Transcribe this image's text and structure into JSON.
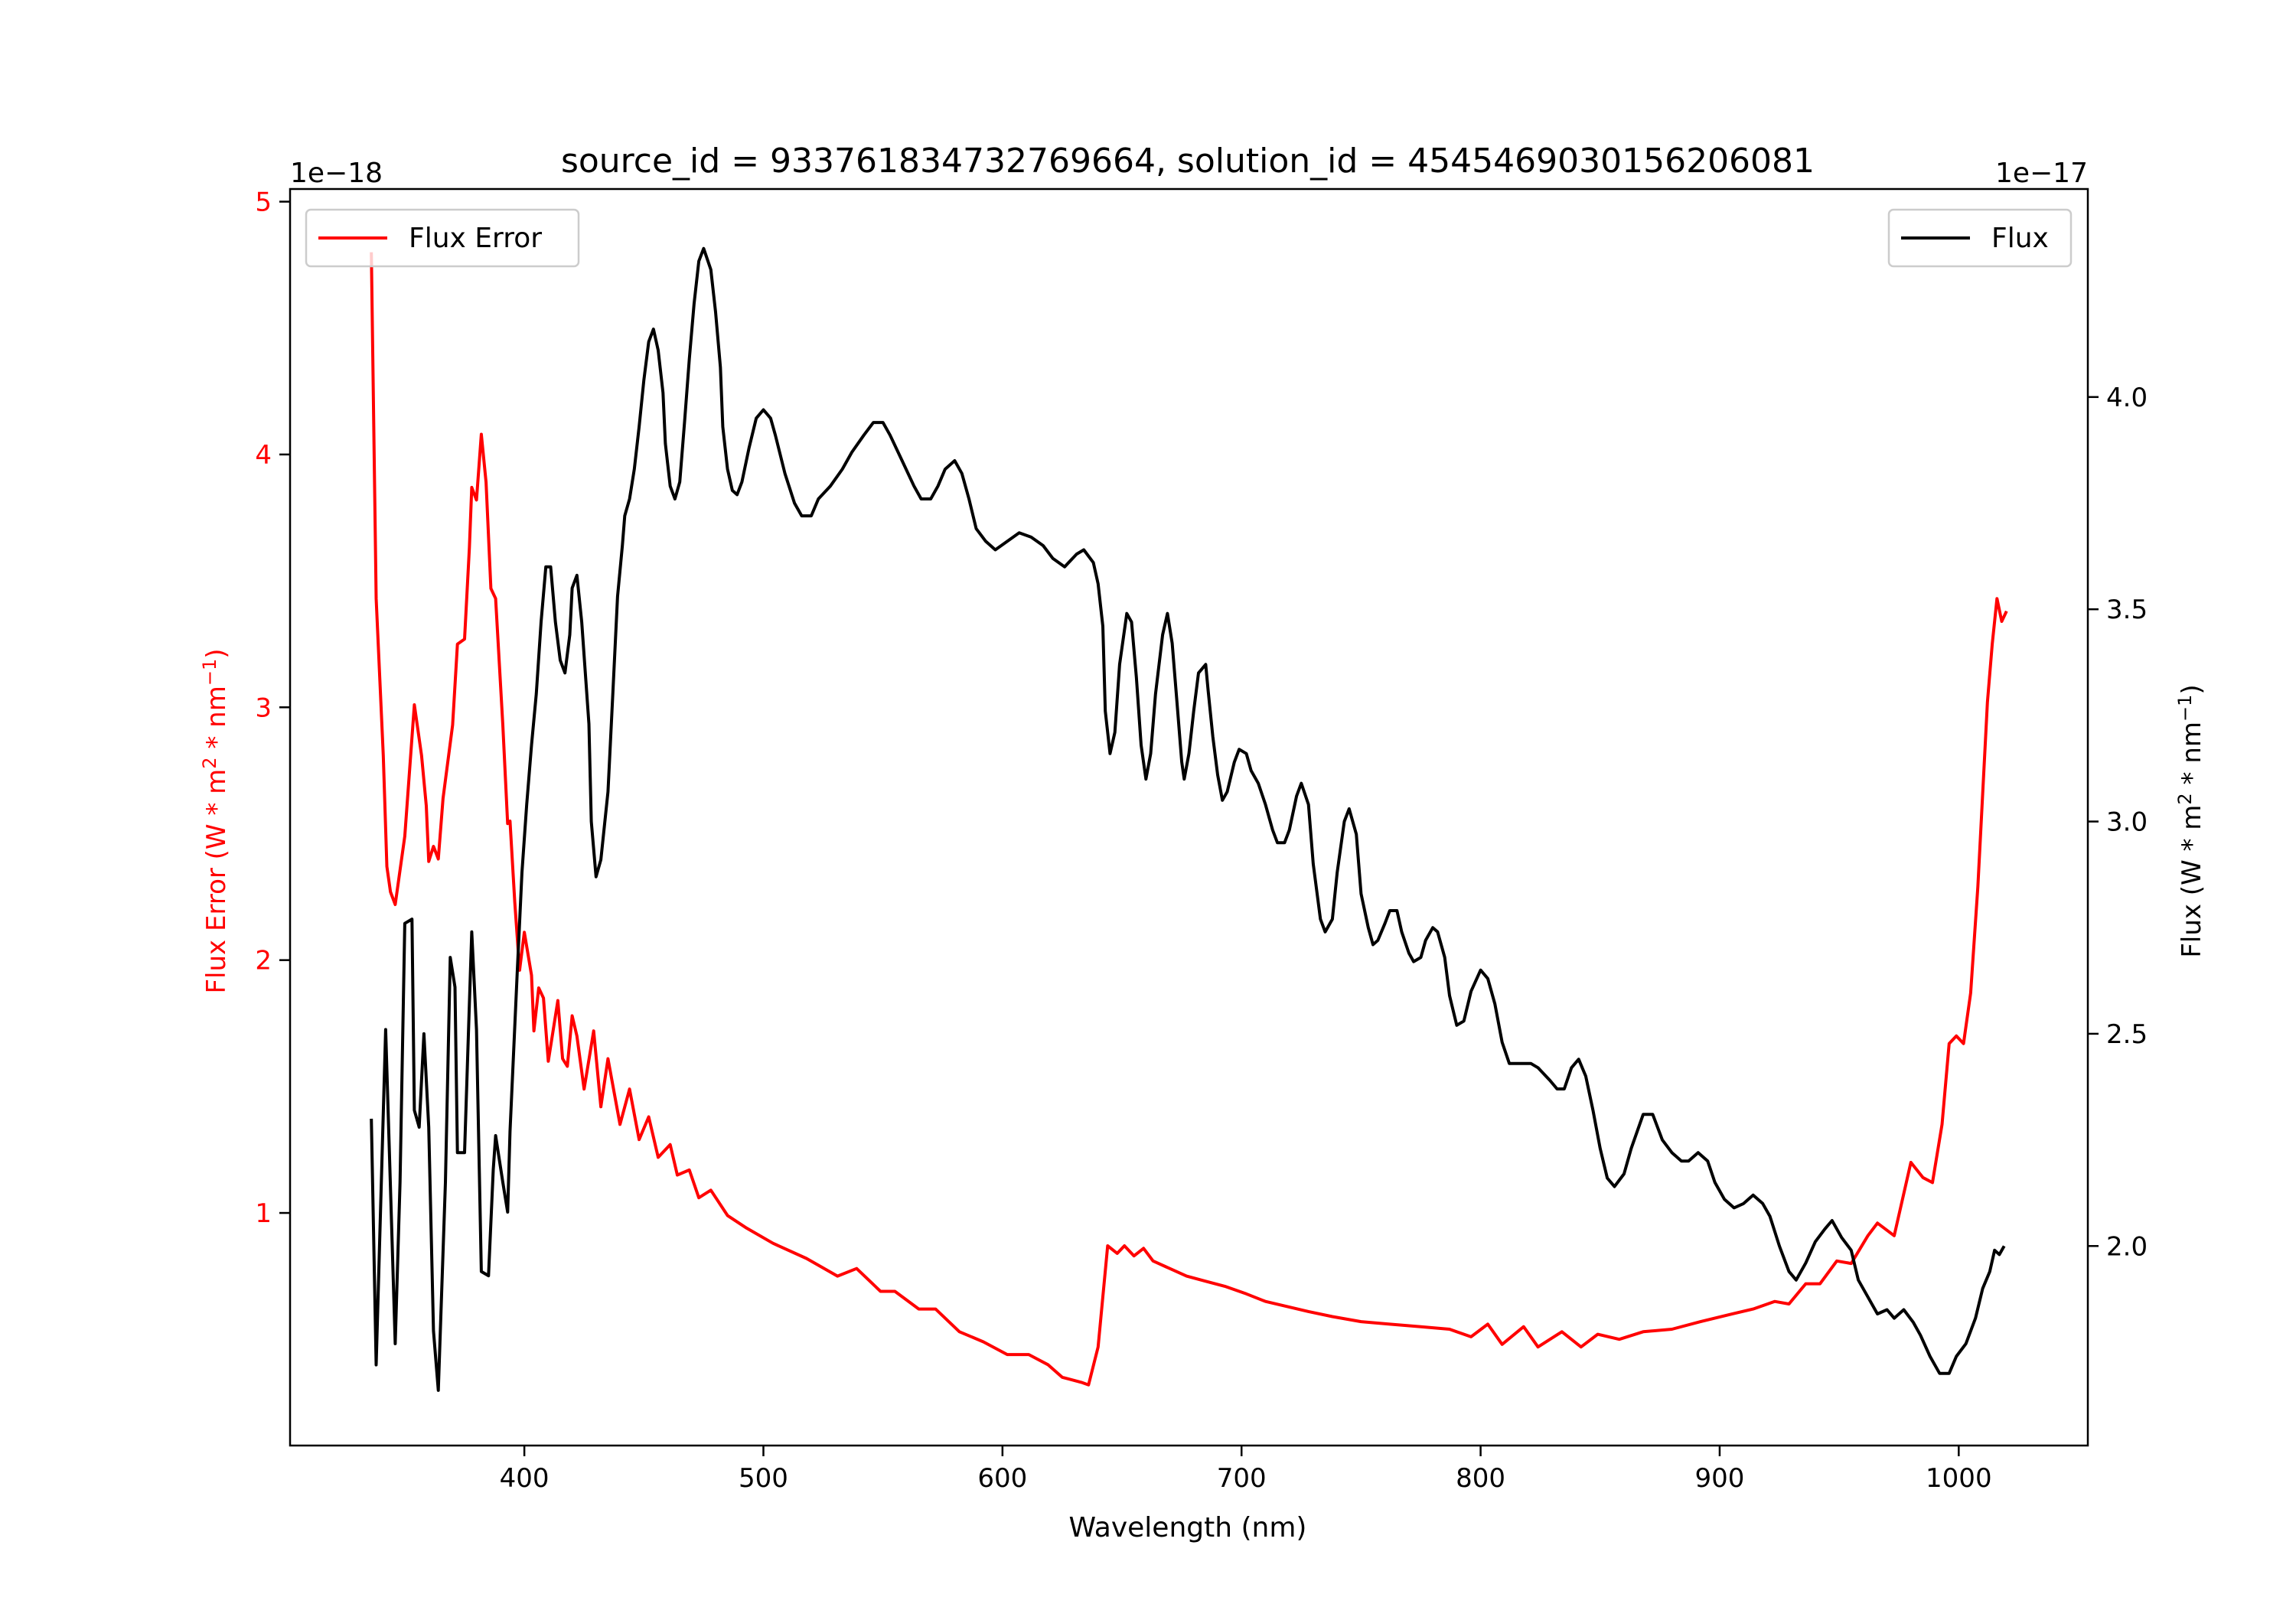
{
  "chart_data": {
    "type": "line",
    "title": "source_id = 933761834732769664, solution_id = 4545469030156206081",
    "xlabel": "Wavelength (nm)",
    "xlim": [
      302,
      1054
    ],
    "x_ticks": [
      400,
      500,
      600,
      700,
      800,
      900,
      1000
    ],
    "grid": false,
    "axes": {
      "left": {
        "label": "Flux Error (W * m² * nm⁻¹)",
        "label_parts": {
          "pre": "Flux Error (W * m",
          "sup1": "2",
          "mid": " * nm",
          "sup2": "−1",
          "post": ")"
        },
        "offset_text": "1e−18",
        "ylim": [
          0.08,
          5.05
        ],
        "ticks": [
          1,
          2,
          3,
          4,
          5
        ],
        "color": "#ff0000"
      },
      "right": {
        "label": "Flux (W * m² * nm⁻¹)",
        "label_parts": {
          "pre": "Flux (W * m",
          "sup1": "2",
          "mid": " * nm",
          "sup2": "−1",
          "post": ")"
        },
        "offset_text": "1e−17",
        "ylim": [
          1.53,
          4.49
        ],
        "ticks": [
          2.0,
          2.5,
          3.0,
          3.5,
          4.0
        ],
        "tick_labels": [
          "2.0",
          "2.5",
          "3.0",
          "3.5",
          "4.0"
        ],
        "color": "#000000"
      }
    },
    "series": [
      {
        "name": "Flux Error",
        "axis": "left",
        "color": "#ff0000",
        "legend": "top-left",
        "x": [
          336,
          338,
          341,
          342.5,
          344,
          346,
          350,
          354,
          357,
          359,
          360,
          362,
          364,
          366,
          370,
          372,
          375,
          377,
          378,
          380,
          382,
          384,
          386,
          388,
          391,
          393,
          394,
          396,
          398,
          400,
          403,
          404,
          406,
          408,
          410,
          414,
          416,
          418,
          420,
          422,
          425,
          429,
          432,
          435,
          440,
          444,
          448,
          452,
          456,
          461,
          464,
          469,
          473,
          478,
          485,
          493,
          504,
          518,
          531,
          539,
          549,
          555,
          565,
          572,
          582,
          592,
          602,
          611,
          619,
          625,
          633,
          636,
          640,
          644,
          648,
          651,
          655,
          659,
          663,
          670,
          677,
          685,
          693,
          702,
          710,
          719,
          728,
          738,
          750,
          762,
          775,
          787,
          796,
          803,
          809,
          818,
          824,
          834,
          842,
          849,
          858,
          868,
          880,
          892,
          905,
          914,
          923,
          929,
          936,
          942,
          949,
          955,
          962,
          966,
          973,
          980,
          985,
          989,
          993,
          996,
          999,
          1002,
          1005,
          1008,
          1012,
          1014,
          1016,
          1018,
          1020
        ],
        "y": [
          4.8,
          3.43,
          2.81,
          2.37,
          2.27,
          2.22,
          2.49,
          3.01,
          2.81,
          2.61,
          2.39,
          2.45,
          2.4,
          2.64,
          2.93,
          3.25,
          3.27,
          3.63,
          3.87,
          3.82,
          4.08,
          3.89,
          3.47,
          3.43,
          2.93,
          2.54,
          2.55,
          2.23,
          1.96,
          2.11,
          1.94,
          1.72,
          1.89,
          1.85,
          1.6,
          1.84,
          1.61,
          1.58,
          1.78,
          1.7,
          1.49,
          1.72,
          1.42,
          1.61,
          1.35,
          1.49,
          1.29,
          1.38,
          1.22,
          1.27,
          1.15,
          1.17,
          1.06,
          1.09,
          0.99,
          0.94,
          0.88,
          0.82,
          0.75,
          0.78,
          0.69,
          0.69,
          0.62,
          0.62,
          0.53,
          0.49,
          0.44,
          0.44,
          0.4,
          0.35,
          0.33,
          0.32,
          0.47,
          0.87,
          0.84,
          0.87,
          0.83,
          0.86,
          0.81,
          0.78,
          0.75,
          0.73,
          0.71,
          0.68,
          0.65,
          0.63,
          0.61,
          0.59,
          0.57,
          0.56,
          0.55,
          0.54,
          0.51,
          0.56,
          0.48,
          0.55,
          0.47,
          0.53,
          0.47,
          0.52,
          0.5,
          0.53,
          0.54,
          0.57,
          0.6,
          0.62,
          0.65,
          0.64,
          0.72,
          0.72,
          0.81,
          0.8,
          0.91,
          0.96,
          0.91,
          1.2,
          1.14,
          1.12,
          1.35,
          1.67,
          1.7,
          1.67,
          1.87,
          2.29,
          3.02,
          3.25,
          3.43,
          3.34,
          3.38
        ]
      },
      {
        "name": "Flux",
        "axis": "right",
        "color": "#000000",
        "legend": "top-right",
        "x": [
          336,
          338,
          342,
          346,
          348,
          350,
          353,
          354,
          356,
          358,
          360,
          362,
          364,
          367,
          369,
          371,
          372,
          375,
          377,
          378,
          380,
          382,
          385,
          387,
          388,
          391,
          393,
          394,
          397,
          399,
          401,
          403,
          405,
          407,
          409,
          411,
          413,
          415,
          417,
          419,
          420,
          422,
          424,
          427,
          428,
          430,
          432,
          435,
          437,
          439,
          441,
          442,
          444,
          446,
          448,
          450,
          452,
          454,
          456,
          458,
          459,
          461,
          463,
          465,
          467,
          469,
          471,
          473,
          475,
          478,
          480,
          482,
          483,
          485,
          487,
          489,
          491,
          494,
          497,
          500,
          503,
          505,
          509,
          513,
          516,
          520,
          523,
          528,
          533,
          537,
          542,
          546,
          550,
          553,
          558,
          563,
          566,
          570,
          573,
          576,
          580,
          583,
          586,
          589,
          593,
          597,
          602,
          607,
          612,
          617,
          621,
          626,
          631,
          634,
          638,
          640,
          642,
          643,
          645,
          647,
          649,
          652,
          654,
          656,
          658,
          660,
          662,
          664,
          667,
          669,
          671,
          673,
          675,
          676,
          678,
          680,
          682,
          685,
          686,
          688,
          690,
          692,
          694,
          697,
          699,
          702,
          704,
          707,
          710,
          713,
          715,
          718,
          720,
          723,
          725,
          728,
          730,
          733,
          735,
          738,
          740,
          743,
          745,
          748,
          750,
          753,
          755,
          757,
          760,
          762,
          765,
          767,
          770,
          772,
          775,
          777,
          780,
          782,
          785,
          787,
          790,
          793,
          796,
          800,
          803,
          806,
          809,
          812,
          816,
          821,
          824,
          829,
          832,
          835,
          838,
          841,
          844,
          847,
          850,
          853,
          856,
          860,
          863,
          868,
          872,
          876,
          880,
          884,
          887,
          891,
          895,
          898,
          902,
          906,
          910,
          914,
          918,
          921,
          925,
          929,
          932,
          936,
          940,
          944,
          947,
          951,
          955,
          958,
          962,
          966,
          970,
          973,
          977,
          981,
          984,
          988,
          992,
          996,
          999,
          1003,
          1007,
          1010,
          1013,
          1015,
          1017,
          1019
        ],
        "y": [
          2.3,
          1.72,
          2.51,
          1.77,
          2.15,
          2.76,
          2.77,
          2.32,
          2.28,
          2.5,
          2.28,
          1.8,
          1.66,
          2.15,
          2.68,
          2.61,
          2.22,
          2.22,
          2.57,
          2.74,
          2.51,
          1.94,
          1.93,
          2.18,
          2.26,
          2.15,
          2.08,
          2.27,
          2.64,
          2.88,
          3.04,
          3.18,
          3.3,
          3.47,
          3.6,
          3.6,
          3.47,
          3.38,
          3.35,
          3.44,
          3.55,
          3.58,
          3.47,
          3.23,
          3.0,
          2.87,
          2.91,
          3.07,
          3.3,
          3.53,
          3.65,
          3.72,
          3.76,
          3.83,
          3.93,
          4.04,
          4.13,
          4.16,
          4.11,
          4.01,
          3.89,
          3.79,
          3.76,
          3.8,
          3.94,
          4.09,
          4.22,
          4.32,
          4.35,
          4.3,
          4.2,
          4.07,
          3.93,
          3.83,
          3.78,
          3.77,
          3.8,
          3.88,
          3.95,
          3.97,
          3.95,
          3.91,
          3.82,
          3.75,
          3.72,
          3.72,
          3.76,
          3.79,
          3.83,
          3.87,
          3.91,
          3.94,
          3.94,
          3.91,
          3.85,
          3.79,
          3.76,
          3.76,
          3.79,
          3.83,
          3.85,
          3.82,
          3.76,
          3.69,
          3.66,
          3.64,
          3.66,
          3.68,
          3.67,
          3.65,
          3.62,
          3.6,
          3.63,
          3.64,
          3.61,
          3.56,
          3.46,
          3.26,
          3.16,
          3.21,
          3.37,
          3.49,
          3.47,
          3.34,
          3.18,
          3.1,
          3.16,
          3.3,
          3.44,
          3.49,
          3.42,
          3.28,
          3.14,
          3.1,
          3.16,
          3.26,
          3.35,
          3.37,
          3.31,
          3.2,
          3.11,
          3.05,
          3.07,
          3.14,
          3.17,
          3.16,
          3.12,
          3.09,
          3.04,
          2.98,
          2.95,
          2.95,
          2.98,
          3.06,
          3.09,
          3.04,
          2.9,
          2.77,
          2.74,
          2.77,
          2.88,
          3.0,
          3.03,
          2.97,
          2.83,
          2.75,
          2.71,
          2.72,
          2.76,
          2.79,
          2.79,
          2.74,
          2.69,
          2.67,
          2.68,
          2.72,
          2.75,
          2.74,
          2.68,
          2.59,
          2.52,
          2.53,
          2.6,
          2.65,
          2.63,
          2.57,
          2.48,
          2.43,
          2.43,
          2.43,
          2.42,
          2.39,
          2.37,
          2.37,
          2.42,
          2.44,
          2.4,
          2.32,
          2.23,
          2.16,
          2.14,
          2.17,
          2.23,
          2.31,
          2.31,
          2.25,
          2.22,
          2.2,
          2.2,
          2.22,
          2.2,
          2.15,
          2.11,
          2.09,
          2.1,
          2.12,
          2.1,
          2.07,
          2.0,
          1.94,
          1.92,
          1.96,
          2.01,
          2.04,
          2.06,
          2.02,
          1.99,
          1.92,
          1.88,
          1.84,
          1.85,
          1.83,
          1.85,
          1.82,
          1.79,
          1.74,
          1.7,
          1.7,
          1.74,
          1.77,
          1.83,
          1.9,
          1.94,
          1.99,
          1.98,
          2.0
        ]
      }
    ]
  }
}
